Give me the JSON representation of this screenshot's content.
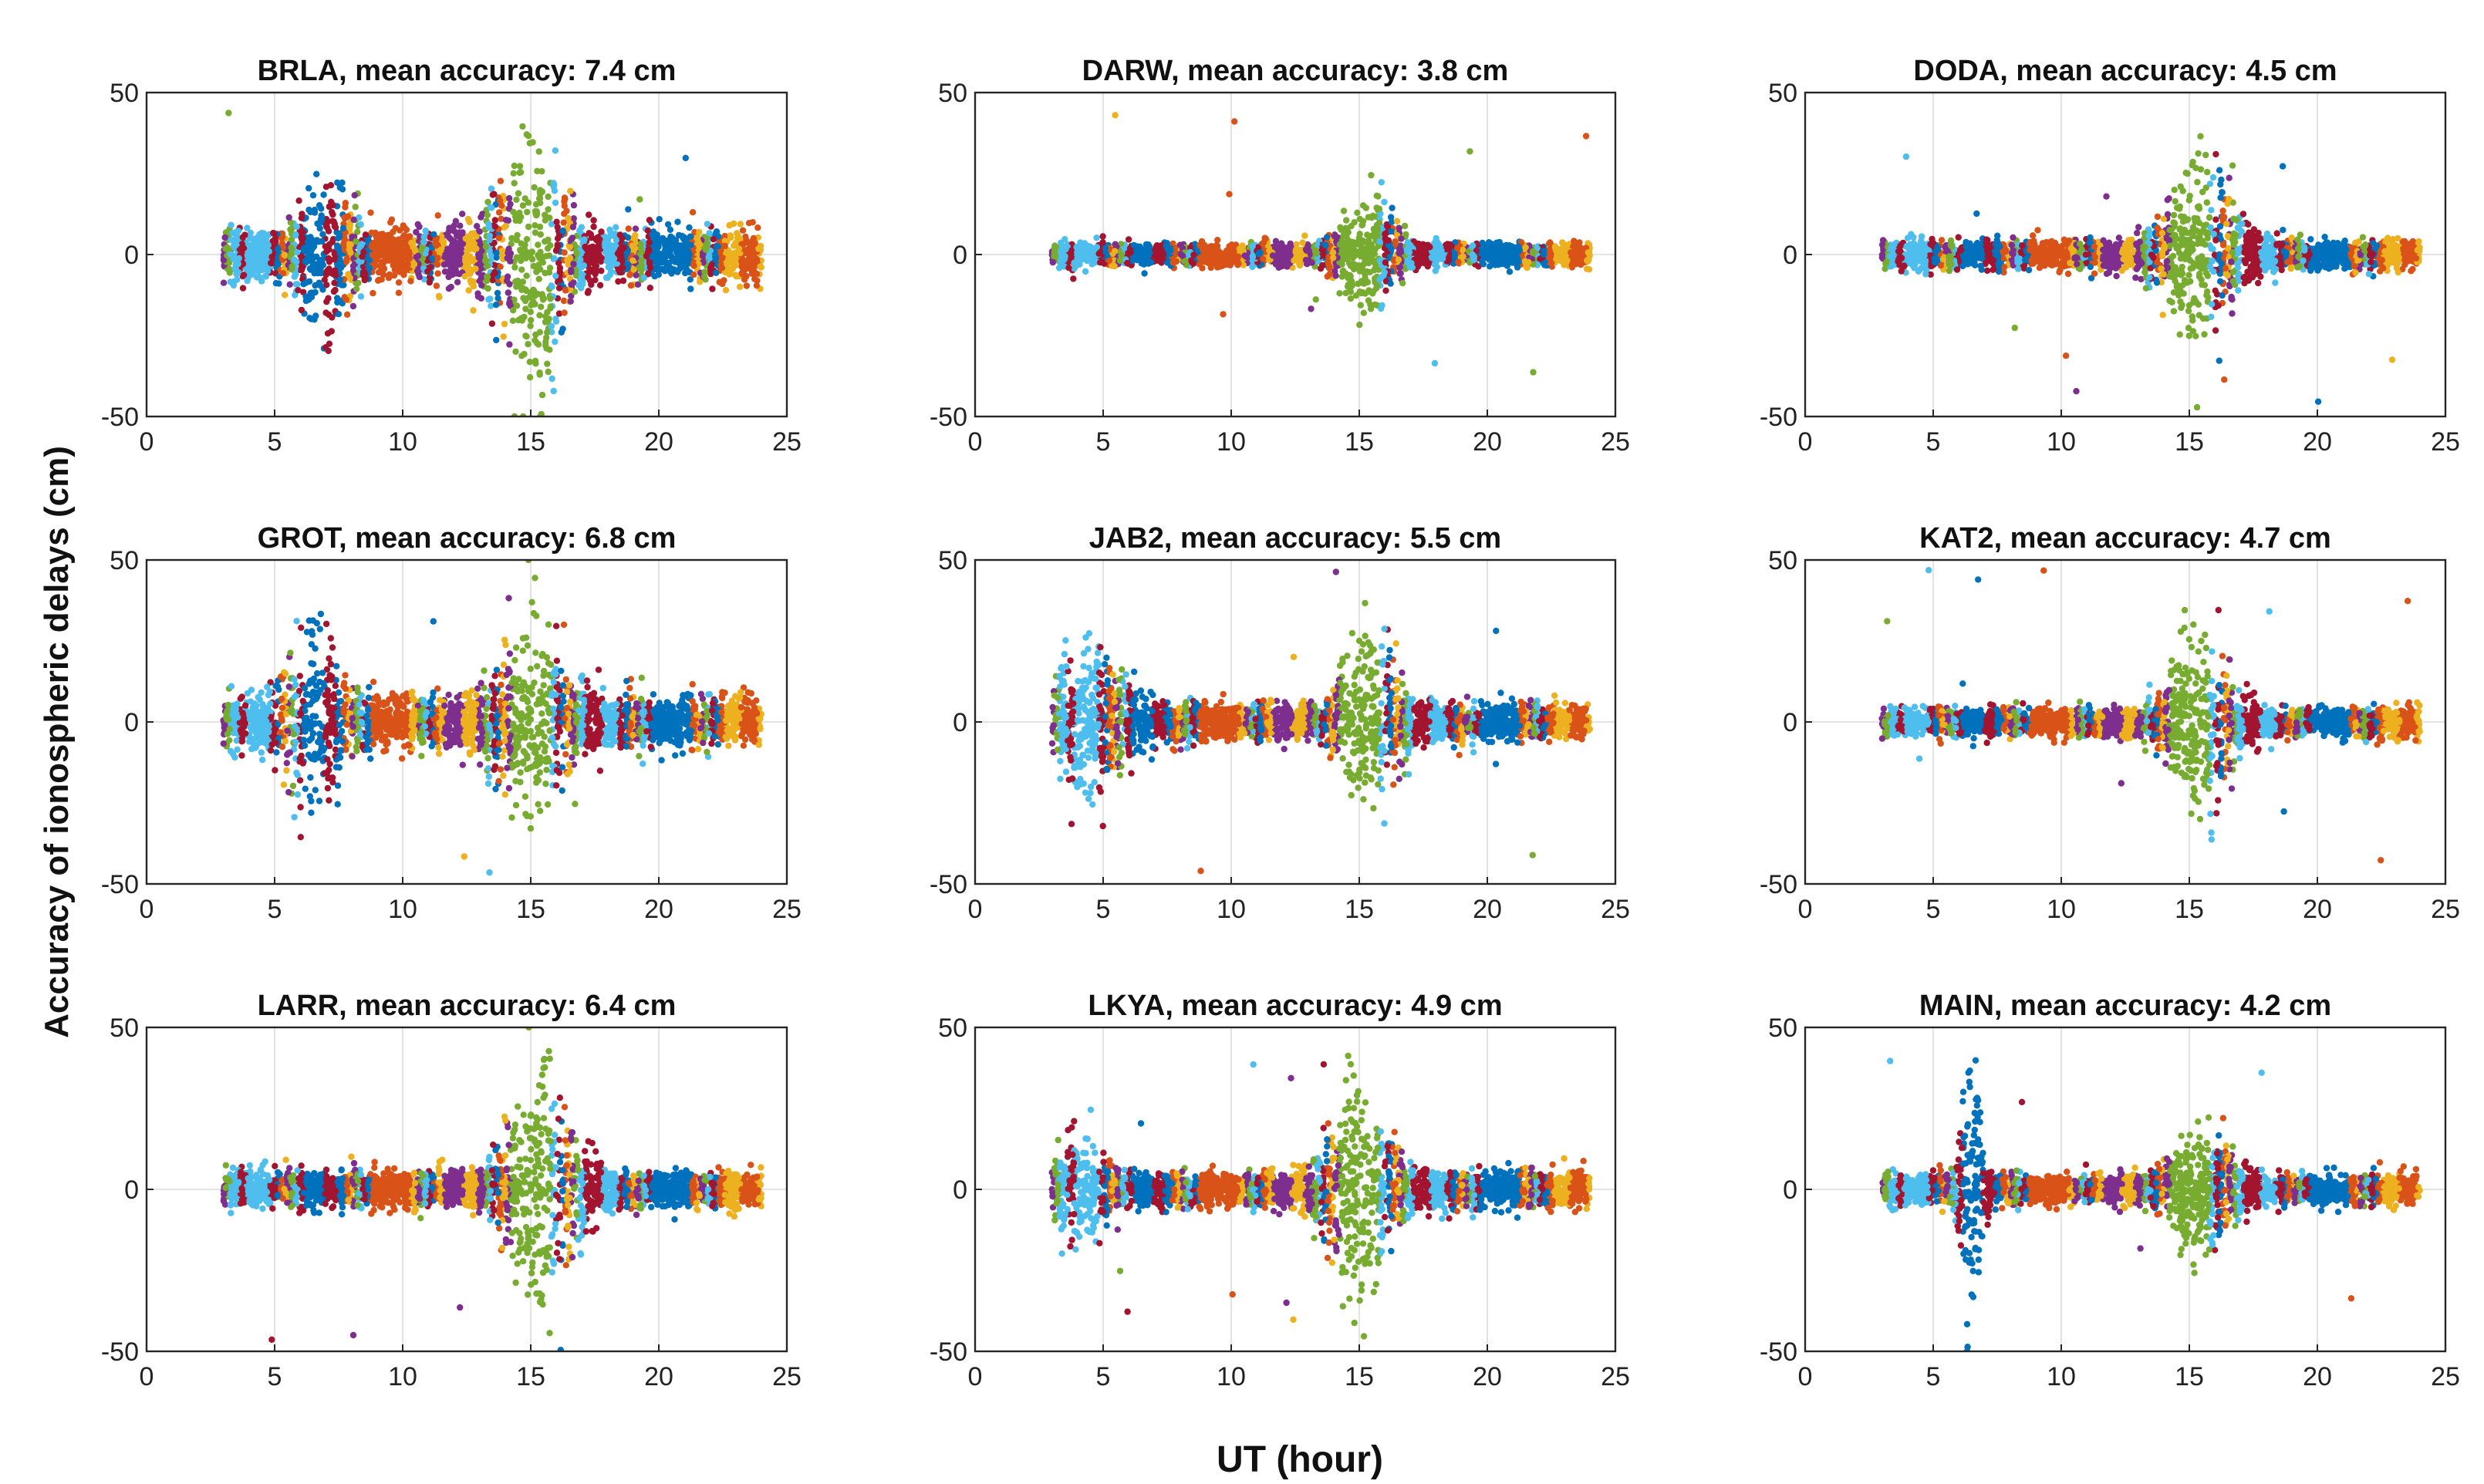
{
  "figure": {
    "ylabel": "Accuracy of ionospheric delays (cm)",
    "xlabel": "UT (hour)"
  },
  "chart_data": [
    {
      "type": "scatter",
      "title": "BRLA, mean accuracy: 7.4 cm",
      "station": "BRLA",
      "mean_accuracy_cm": 7.4,
      "xlim": [
        0,
        25
      ],
      "ylim": [
        -50,
        50
      ],
      "xticks": [
        0,
        5,
        10,
        15,
        20,
        25
      ],
      "yticks": [
        -50,
        0,
        50
      ],
      "x_range": [
        3,
        24
      ],
      "typical_spread_cm": 7,
      "disturbances": [
        [
          7,
          1.0,
          18
        ],
        [
          15,
          1.5,
          30
        ]
      ]
    },
    {
      "type": "scatter",
      "title": "DARW, mean accuracy: 3.8 cm",
      "station": "DARW",
      "mean_accuracy_cm": 3.8,
      "xlim": [
        0,
        25
      ],
      "ylim": [
        -50,
        50
      ],
      "xticks": [
        0,
        5,
        10,
        15,
        20,
        25
      ],
      "yticks": [
        -50,
        0,
        50
      ],
      "x_range": [
        3,
        24
      ],
      "typical_spread_cm": 3,
      "disturbances": [
        [
          15.5,
          1.2,
          14
        ]
      ]
    },
    {
      "type": "scatter",
      "title": "DODA, mean accuracy: 4.5 cm",
      "station": "DODA",
      "mean_accuracy_cm": 4.5,
      "xlim": [
        0,
        25
      ],
      "ylim": [
        -50,
        50
      ],
      "xticks": [
        0,
        5,
        10,
        15,
        20,
        25
      ],
      "yticks": [
        -50,
        0,
        50
      ],
      "x_range": [
        3,
        24
      ],
      "typical_spread_cm": 4,
      "disturbances": [
        [
          15.5,
          1.5,
          22
        ]
      ]
    },
    {
      "type": "scatter",
      "title": "GROT, mean accuracy: 6.8 cm",
      "station": "GROT",
      "mean_accuracy_cm": 6.8,
      "xlim": [
        0,
        25
      ],
      "ylim": [
        -50,
        50
      ],
      "xticks": [
        0,
        5,
        10,
        15,
        20,
        25
      ],
      "yticks": [
        -50,
        0,
        50
      ],
      "x_range": [
        3,
        24
      ],
      "typical_spread_cm": 7,
      "disturbances": [
        [
          6.5,
          1.2,
          20
        ],
        [
          15,
          1.5,
          22
        ]
      ]
    },
    {
      "type": "scatter",
      "title": "JAB2, mean accuracy: 5.5 cm",
      "station": "JAB2",
      "mean_accuracy_cm": 5.5,
      "xlim": [
        0,
        25
      ],
      "ylim": [
        -50,
        50
      ],
      "xticks": [
        0,
        5,
        10,
        15,
        20,
        25
      ],
      "yticks": [
        -50,
        0,
        50
      ],
      "x_range": [
        3,
        24
      ],
      "typical_spread_cm": 5,
      "disturbances": [
        [
          4.5,
          1.5,
          18
        ],
        [
          15.5,
          1.2,
          22
        ]
      ]
    },
    {
      "type": "scatter",
      "title": "KAT2, mean accuracy: 4.7 cm",
      "station": "KAT2",
      "mean_accuracy_cm": 4.7,
      "xlim": [
        0,
        25
      ],
      "ylim": [
        -50,
        50
      ],
      "xticks": [
        0,
        5,
        10,
        15,
        20,
        25
      ],
      "yticks": [
        -50,
        0,
        50
      ],
      "x_range": [
        3,
        24
      ],
      "typical_spread_cm": 4,
      "disturbances": [
        [
          15.5,
          1.3,
          22
        ]
      ]
    },
    {
      "type": "scatter",
      "title": "LARR, mean accuracy: 6.4 cm",
      "station": "LARR",
      "mean_accuracy_cm": 6.4,
      "xlim": [
        0,
        25
      ],
      "ylim": [
        -50,
        50
      ],
      "xticks": [
        0,
        5,
        10,
        15,
        20,
        25
      ],
      "yticks": [
        -50,
        0,
        50
      ],
      "x_range": [
        3,
        24
      ],
      "typical_spread_cm": 5,
      "disturbances": [
        [
          15.5,
          1.5,
          28
        ]
      ]
    },
    {
      "type": "scatter",
      "title": "LKYA, mean accuracy: 4.9 cm",
      "station": "LKYA",
      "mean_accuracy_cm": 4.9,
      "xlim": [
        0,
        25
      ],
      "ylim": [
        -50,
        50
      ],
      "xticks": [
        0,
        5,
        10,
        15,
        20,
        25
      ],
      "yticks": [
        -50,
        0,
        50
      ],
      "x_range": [
        3,
        24
      ],
      "typical_spread_cm": 5,
      "disturbances": [
        [
          15,
          1.3,
          25
        ],
        [
          4,
          1.0,
          12
        ]
      ]
    },
    {
      "type": "scatter",
      "title": "MAIN, mean accuracy: 4.2 cm",
      "station": "MAIN",
      "mean_accuracy_cm": 4.2,
      "xlim": [
        0,
        25
      ],
      "ylim": [
        -50,
        50
      ],
      "xticks": [
        0,
        5,
        10,
        15,
        20,
        25
      ],
      "yticks": [
        -50,
        0,
        50
      ],
      "x_range": [
        3,
        24
      ],
      "typical_spread_cm": 4,
      "disturbances": [
        [
          15.5,
          1.3,
          15
        ],
        [
          6.5,
          0.4,
          40
        ]
      ]
    }
  ],
  "series_colors": [
    "#0072BD",
    "#D95319",
    "#EDB120",
    "#7E2F8E",
    "#77AC30",
    "#4DBEEE",
    "#A2142F"
  ]
}
